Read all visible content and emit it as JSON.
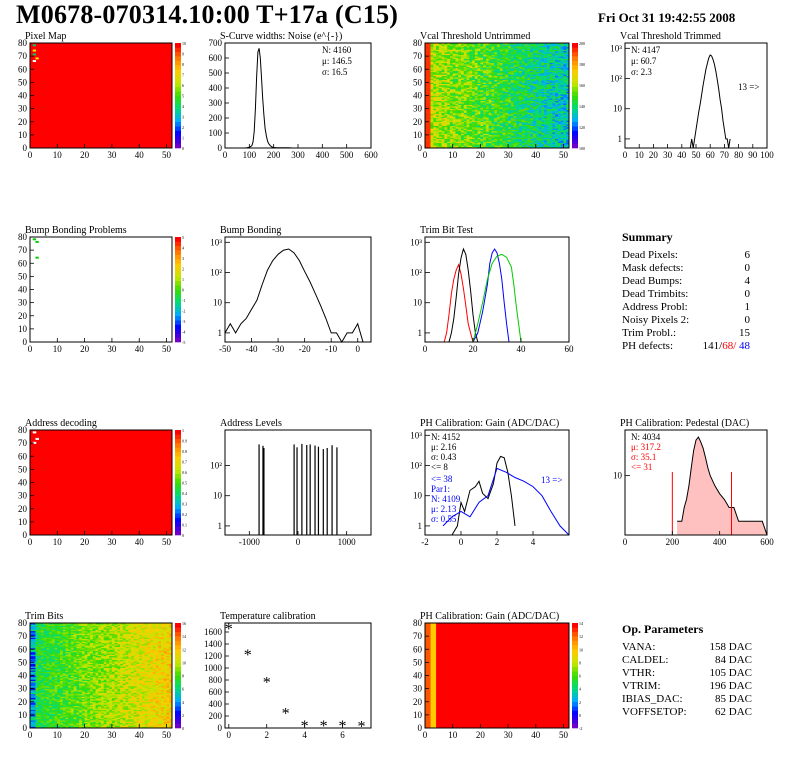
{
  "header": {
    "title": "M0678-070314.10:00 T+17a (C15)",
    "date": "Fri Oct 31 19:42:55 2008"
  },
  "colors": {
    "red": "#ff0000",
    "blue": "#0000ff",
    "green": "#00cc00",
    "black": "#000000"
  },
  "chart_data": [
    {
      "id": "pixel-map",
      "type": "heatmap",
      "title": "Pixel Map",
      "xlim": [
        0,
        52
      ],
      "ylim": [
        0,
        80
      ],
      "x_ticks": [
        "0",
        "10",
        "20",
        "30",
        "40",
        "50"
      ],
      "y_ticks": [
        "0",
        "10",
        "20",
        "30",
        "40",
        "50",
        "60",
        "70",
        "80"
      ],
      "z_ticks": [
        "0",
        "1",
        "2",
        "3",
        "4",
        "5",
        "6",
        "7",
        "8",
        "9",
        "10"
      ],
      "fill": "uniform red (value 10) with a few low-count pixels near column 1-2, rows 66-79"
    },
    {
      "id": "scurve-noise",
      "type": "line",
      "title": "S-Curve widths: Noise (e^{-})",
      "xlim": [
        0,
        600
      ],
      "ylim": [
        0,
        700
      ],
      "x_ticks": [
        "0",
        "100",
        "200",
        "300",
        "400",
        "500",
        "600"
      ],
      "y_ticks": [
        "0",
        "100",
        "200",
        "300",
        "400",
        "500",
        "600",
        "700"
      ],
      "stats": [
        "N: 4160",
        "μ: 146.5",
        "σ: 16.5"
      ],
      "x": [
        80,
        90,
        100,
        110,
        115,
        120,
        125,
        130,
        135,
        140,
        145,
        150,
        155,
        160,
        165,
        170,
        175,
        180,
        185,
        190,
        195,
        200,
        210,
        220,
        240,
        260,
        280,
        300
      ],
      "y": [
        0,
        2,
        5,
        15,
        40,
        110,
        260,
        470,
        640,
        665,
        600,
        470,
        330,
        220,
        130,
        80,
        45,
        28,
        18,
        10,
        6,
        4,
        2,
        2,
        1,
        1,
        0,
        0
      ]
    },
    {
      "id": "vcal-untrimmed",
      "type": "heatmap",
      "title": "Vcal Threshold Untrimmed",
      "xlim": [
        0,
        52
      ],
      "ylim": [
        0,
        80
      ],
      "x_ticks": [
        "0",
        "10",
        "20",
        "30",
        "40",
        "50"
      ],
      "y_ticks": [
        "0",
        "10",
        "20",
        "30",
        "40",
        "50",
        "60",
        "70",
        "80"
      ],
      "z_ticks": [
        "100",
        "120",
        "140",
        "160",
        "180",
        "200"
      ]
    },
    {
      "id": "vcal-trimmed",
      "type": "line",
      "title": "Vcal Threshold Trimmed",
      "log_y": true,
      "xlim": [
        0,
        100
      ],
      "ylim": [
        0.5,
        1500
      ],
      "x_ticks": [
        "0",
        "10",
        "20",
        "30",
        "40",
        "50",
        "60",
        "70",
        "80",
        "90",
        "100"
      ],
      "y_ticks": [
        "1",
        "10",
        "10²",
        "10³"
      ],
      "stats": [
        "N: 4147",
        "μ: 60.7",
        "σ:  2.3"
      ],
      "annotation": "13 =>",
      "x": [
        46,
        47,
        48,
        49,
        50,
        51,
        52,
        53,
        54,
        55,
        56,
        57,
        58,
        59,
        60,
        61,
        62,
        63,
        64,
        65,
        66,
        67,
        68,
        69,
        70,
        71,
        72,
        73,
        74
      ],
      "y": [
        0.5,
        1,
        0.5,
        1,
        2,
        4,
        8,
        15,
        30,
        60,
        110,
        200,
        320,
        480,
        600,
        560,
        430,
        290,
        170,
        90,
        45,
        20,
        10,
        4,
        2,
        1,
        1,
        0.5,
        1
      ]
    },
    {
      "id": "bump-bonding-problems",
      "type": "heatmap",
      "title": "Bump Bonding Problems",
      "xlim": [
        0,
        52
      ],
      "ylim": [
        0,
        80
      ],
      "x_ticks": [
        "0",
        "10",
        "20",
        "30",
        "40",
        "50"
      ],
      "y_ticks": [
        "0",
        "10",
        "20",
        "30",
        "40",
        "50",
        "60",
        "70",
        "80"
      ],
      "z_ticks": [
        "-5",
        "-4",
        "-3",
        "-2",
        "-1",
        "0",
        "1",
        "2",
        "3",
        "4",
        "5"
      ]
    },
    {
      "id": "bump-bonding",
      "type": "line",
      "title": "Bump Bonding",
      "log_y": true,
      "xlim": [
        -50,
        5
      ],
      "ylim": [
        0.5,
        1500
      ],
      "x_ticks": [
        "-50",
        "-40",
        "-30",
        "-20",
        "-10",
        "0"
      ],
      "y_ticks": [
        "1",
        "10",
        "10²",
        "10³"
      ],
      "x": [
        -50,
        -48,
        -46,
        -44,
        -42,
        -40,
        -38,
        -36,
        -34,
        -32,
        -30,
        -28,
        -26,
        -24,
        -22,
        -20,
        -18,
        -16,
        -14,
        -12,
        -10,
        -8,
        -6,
        -4,
        -2,
        0,
        2
      ],
      "y": [
        1,
        2,
        1,
        2,
        3,
        6,
        12,
        40,
        120,
        250,
        400,
        550,
        600,
        450,
        250,
        110,
        50,
        20,
        8,
        3,
        1,
        1,
        0.5,
        1,
        1,
        2,
        0.5
      ]
    },
    {
      "id": "trim-bit-test",
      "type": "line",
      "title": "Trim Bit Test",
      "log_y": true,
      "xlim": [
        0,
        60
      ],
      "ylim": [
        0.5,
        1500
      ],
      "x_ticks": [
        "0",
        "20",
        "40",
        "60"
      ],
      "y_ticks": [
        "1",
        "10",
        "10²",
        "10³"
      ],
      "series": [
        {
          "color": "red",
          "x": [
            8,
            9,
            10,
            11,
            12,
            13,
            14,
            15,
            16,
            17,
            18,
            19,
            20
          ],
          "y": [
            0.5,
            1,
            4,
            20,
            60,
            120,
            180,
            90,
            30,
            8,
            2,
            1,
            0.5
          ]
        },
        {
          "color": "black",
          "x": [
            10,
            11,
            12,
            13,
            14,
            15,
            16,
            17,
            18,
            19,
            20,
            21,
            22
          ],
          "y": [
            0.5,
            1,
            3,
            15,
            90,
            300,
            600,
            400,
            120,
            25,
            4,
            1,
            0.5
          ]
        },
        {
          "color": "blue",
          "x": [
            20,
            22,
            24,
            26,
            27,
            28,
            29,
            30,
            31,
            32,
            33,
            34,
            35
          ],
          "y": [
            0.5,
            1,
            5,
            40,
            200,
            450,
            600,
            450,
            200,
            60,
            10,
            2,
            0.5
          ]
        },
        {
          "color": "green",
          "x": [
            20,
            22,
            24,
            26,
            28,
            30,
            32,
            34,
            36,
            37,
            38,
            39,
            40
          ],
          "y": [
            0.5,
            2,
            10,
            60,
            200,
            350,
            400,
            320,
            150,
            40,
            8,
            2,
            0.5
          ]
        }
      ]
    },
    {
      "id": "address-decoding",
      "type": "heatmap",
      "title": "Address decoding",
      "xlim": [
        0,
        52
      ],
      "ylim": [
        0,
        80
      ],
      "x_ticks": [
        "0",
        "10",
        "20",
        "30",
        "40",
        "50"
      ],
      "y_ticks": [
        "0",
        "10",
        "20",
        "30",
        "40",
        "50",
        "60",
        "70",
        "80"
      ],
      "z_ticks": [
        "0",
        "0.1",
        "0.2",
        "0.3",
        "0.4",
        "0.5",
        "0.6",
        "0.7",
        "0.8",
        "0.9",
        "1"
      ]
    },
    {
      "id": "address-levels",
      "type": "bar",
      "title": "Address Levels",
      "log_y": true,
      "xlim": [
        -1500,
        1500
      ],
      "ylim": [
        0.5,
        1500
      ],
      "x_ticks": [
        "-1000",
        "0",
        "1000"
      ],
      "y_ticks": [
        "1",
        "10",
        "10²"
      ],
      "x": [
        -800,
        -720,
        -700,
        -80,
        -20,
        80,
        180,
        250,
        350,
        420,
        520,
        600,
        700,
        800
      ],
      "y": [
        500,
        450,
        380,
        500,
        400,
        520,
        480,
        500,
        460,
        420,
        350,
        380,
        470,
        400
      ]
    },
    {
      "id": "ph-gain",
      "type": "line",
      "title": "PH Calibration: Gain (ADC/DAC)",
      "log_y": true,
      "xlim": [
        -2,
        6
      ],
      "ylim": [
        0.5,
        1500
      ],
      "x_ticks": [
        "-2",
        "0",
        "2",
        "4"
      ],
      "y_ticks": [
        "1",
        "10",
        "10²",
        "10³"
      ],
      "stats_black": [
        "N: 4152",
        "μ: 2.16",
        "σ: 0.43",
        "<= 8"
      ],
      "stats_blue": [
        "<= 38",
        "Par1:",
        "N: 4109",
        "μ: 2.13",
        "σ: 0.55"
      ],
      "annotation": "13 =>",
      "series": [
        {
          "color": "black",
          "x": [
            -0.5,
            -0.2,
            0,
            0.2,
            0.5,
            0.8,
            1.0,
            1.2,
            1.5,
            1.8,
            2.0,
            2.2,
            2.4,
            2.6,
            2.8,
            3.0
          ],
          "y": [
            0.5,
            1,
            6,
            3,
            15,
            20,
            30,
            12,
            8,
            25,
            120,
            200,
            180,
            60,
            10,
            1
          ]
        },
        {
          "color": "blue",
          "x": [
            -1,
            -0.5,
            0,
            0.5,
            1,
            1.5,
            2,
            2.5,
            3,
            3.5,
            4,
            4.5,
            5,
            5.5,
            6
          ],
          "y": [
            1,
            2,
            3,
            2,
            6,
            10,
            80,
            60,
            40,
            30,
            20,
            10,
            3,
            1,
            0.5
          ]
        }
      ]
    },
    {
      "id": "ph-pedestal",
      "type": "line",
      "title": "PH Calibration: Pedestal (DAC)",
      "log_y": true,
      "xlim": [
        0,
        600
      ],
      "ylim": [
        0.5,
        100
      ],
      "x_ticks": [
        "0",
        "200",
        "400",
        "600"
      ],
      "y_ticks": [
        "10"
      ],
      "stats_black": [
        "N: 4034"
      ],
      "stats_red": [
        "μ: 317.2",
        "σ: 35.1",
        "<= 31"
      ],
      "x": [
        220,
        240,
        250,
        260,
        270,
        280,
        290,
        300,
        310,
        320,
        330,
        340,
        350,
        360,
        380,
        400,
        420,
        440,
        460,
        480,
        500,
        520,
        540,
        560,
        580,
        600
      ],
      "y": [
        1,
        1,
        2,
        3,
        6,
        15,
        35,
        60,
        70,
        55,
        40,
        25,
        15,
        10,
        6,
        4,
        3,
        2,
        2,
        1,
        1,
        1,
        1,
        1,
        1,
        0.5
      ]
    },
    {
      "id": "trim-bits",
      "type": "heatmap",
      "title": "Trim Bits",
      "xlim": [
        0,
        52
      ],
      "ylim": [
        0,
        80
      ],
      "x_ticks": [
        "0",
        "10",
        "20",
        "30",
        "40",
        "50"
      ],
      "y_ticks": [
        "0",
        "10",
        "20",
        "30",
        "40",
        "50",
        "60",
        "70",
        "80"
      ],
      "z_ticks": [
        "0",
        "2",
        "4",
        "6",
        "8",
        "10",
        "12",
        "14",
        "16"
      ]
    },
    {
      "id": "temperature-calibration",
      "type": "scatter",
      "title": "Temperature calibration",
      "xlim": [
        -0.2,
        7.5
      ],
      "ylim": [
        0,
        1750
      ],
      "x_ticks": [
        "0",
        "2",
        "4",
        "6"
      ],
      "y_ticks": [
        "0",
        "200",
        "400",
        "600",
        "800",
        "1000",
        "1200",
        "1400",
        "1600"
      ],
      "x": [
        0,
        1,
        2,
        3,
        4,
        5,
        6,
        7
      ],
      "y": [
        1650,
        1220,
        760,
        240,
        30,
        35,
        30,
        25
      ]
    },
    {
      "id": "ph-gain-map",
      "type": "heatmap",
      "title": "PH Calibration: Gain (ADC/DAC)",
      "xlim": [
        0,
        52
      ],
      "ylim": [
        0,
        80
      ],
      "x_ticks": [
        "0",
        "10",
        "20",
        "30",
        "40",
        "50"
      ],
      "y_ticks": [
        "0",
        "10",
        "20",
        "30",
        "40",
        "50",
        "60",
        "70",
        "80"
      ],
      "z_ticks": [
        "-2",
        "0",
        "2",
        "4",
        "6",
        "8",
        "10",
        "12",
        "14"
      ]
    }
  ],
  "summary": {
    "title": "Summary",
    "rows": [
      {
        "label": "Dead Pixels:",
        "value": "6"
      },
      {
        "label": "Mask defects:",
        "value": "0"
      },
      {
        "label": "Dead Bumps:",
        "value": "4"
      },
      {
        "label": "Dead Trimbits:",
        "value": "0"
      },
      {
        "label": "Address Probl:",
        "value": "1"
      },
      {
        "label": "Noisy Pixels 2:",
        "value": "0"
      },
      {
        "label": "Trim Probl.:",
        "value": "15"
      }
    ],
    "ph_label": "PH defects:",
    "ph_values": [
      "141",
      "68",
      "48"
    ]
  },
  "op_params": {
    "title": "Op. Parameters",
    "rows": [
      {
        "label": "VANA:",
        "value": "158 DAC"
      },
      {
        "label": "CALDEL:",
        "value": "84 DAC"
      },
      {
        "label": "VTHR:",
        "value": "105 DAC"
      },
      {
        "label": "VTRIM:",
        "value": "196 DAC"
      },
      {
        "label": "IBIAS_DAC:",
        "value": "85 DAC"
      },
      {
        "label": "VOFFSETOP:",
        "value": "62 DAC"
      }
    ]
  }
}
